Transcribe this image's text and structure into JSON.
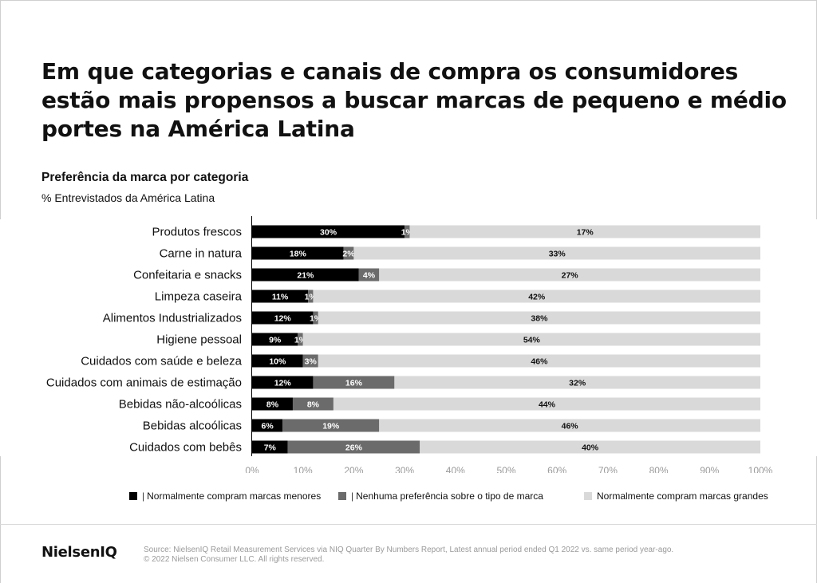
{
  "header": {
    "title": "Em que categorias e canais de compra os consumidores estão mais propensos a buscar marcas de pequeno e médio portes na América Latina",
    "subtitle": "Preferência da marca por categoria",
    "subtitle2": "% Entrevistados da América Latina"
  },
  "chart_data": {
    "type": "bar",
    "orientation": "horizontal",
    "stacked": true,
    "categories": [
      "Produtos frescos",
      "Carne in natura",
      "Confeitaria e snacks",
      "Limpeza caseira",
      "Alimentos Industrializados",
      "Higiene pessoal",
      "Cuidados com saúde e beleza",
      "Cuidados com animais de estimação",
      "Bebidas não-alcoólicas",
      "Bebidas alcoólicas",
      "Cuidados com bebês"
    ],
    "series": [
      {
        "name": "Normalmente compram marcas menores",
        "color": "#000000",
        "label_color": "#ffffff",
        "values": [
          30,
          18,
          21,
          11,
          12,
          9,
          10,
          12,
          8,
          6,
          7
        ]
      },
      {
        "name": "Nenhuma preferência sobre o tipo de marca",
        "color": "#6b6b6b",
        "label_color": "#ffffff",
        "values": [
          1,
          2,
          4,
          1,
          1,
          1,
          3,
          16,
          8,
          19,
          26
        ]
      },
      {
        "name": "Normalmente compram marcas grandes",
        "color": "#d9d9d9",
        "label_color": "#111111",
        "values": [
          17,
          33,
          27,
          42,
          38,
          54,
          46,
          32,
          44,
          46,
          40
        ]
      }
    ],
    "xlim": [
      0,
      100
    ],
    "x_ticks": [
      "0%",
      "10%",
      "20%",
      "30%",
      "40%",
      "50%",
      "60%",
      "70%",
      "80%",
      "90%",
      "100%"
    ],
    "legend_position": "bottom"
  },
  "footer": {
    "brand": "NielsenIQ",
    "source_line1": "Source: NielsenIQ Retail Measurement Services via NIQ Quarter By Numbers Report, Latest annual period ended Q1 2022 vs. same period year-ago.",
    "source_line2": "© 2022 Nielsen Consumer LLC. All rights reserved."
  }
}
